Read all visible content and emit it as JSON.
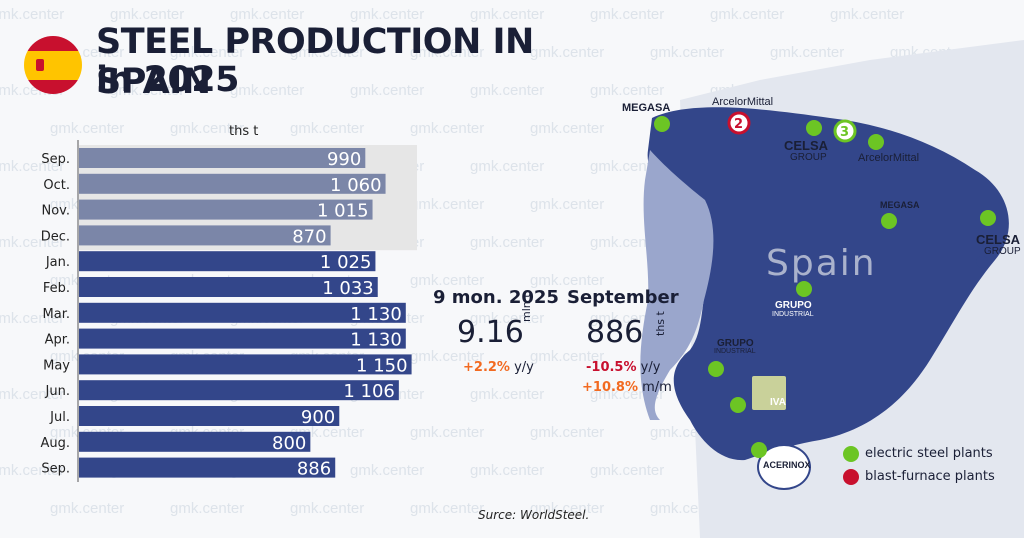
{
  "header": {
    "title_line1": "STEEL PRODUCTION IN SPAIN",
    "title_line2": "in 2025",
    "watermark": "gmk.center"
  },
  "chart_data": {
    "type": "bar",
    "orientation": "horizontal",
    "unit": "ths t",
    "categories": [
      "Sep.",
      "Oct.",
      "Nov.",
      "Dec.",
      "Jan.",
      "Feb.",
      "Mar.",
      "Apr.",
      "May",
      "Jun.",
      "Jul.",
      "Aug.",
      "Sep."
    ],
    "values": [
      990,
      1060,
      1015,
      870,
      1025,
      1033,
      1130,
      1130,
      1150,
      1106,
      900,
      800,
      886
    ],
    "value_labels": [
      "990",
      "1 060",
      "1 015",
      "870",
      "1 025",
      "1 033",
      "1 130",
      "1 130",
      "1 150",
      "1 106",
      "900",
      "800",
      "886"
    ],
    "highlight_prior_year_months": 4,
    "colors": {
      "prior_year": "#7b86a8",
      "current_year": "#33468a",
      "highlight_bg": "#e6e6e6"
    }
  },
  "stats": {
    "period1_label": "9 mon. 2025",
    "period1_value": "9.16",
    "period1_unit": "mln t",
    "period1_change": "+2.2%",
    "period1_change_unit": "y/y",
    "period2_label": "September",
    "period2_value": "886",
    "period2_unit": "ths t",
    "period2_change_yy": "-10.5%",
    "period2_change_yy_unit": "y/y",
    "period2_change_mm": "+10.8%",
    "period2_change_mm_unit": "m/m"
  },
  "map": {
    "country_label": "Spain",
    "companies": [
      "MEGASA",
      "ArcelorMittal",
      "CELSA",
      "GROUP",
      "ArcelorMittal",
      "MEGASA",
      "CELSA",
      "GROUP",
      "GRUPO",
      "INDUSTRIAL",
      "GRUPO",
      "INDUSTRIAL",
      "IVA",
      "ACERINOX"
    ],
    "markers": [
      "2",
      "3"
    ]
  },
  "legend": {
    "electric": "electric steel plants",
    "blast": "blast-furnace plants",
    "electric_color": "#6cc524",
    "blast_color": "#c8102e"
  },
  "source": "Surce: WorldSteel."
}
